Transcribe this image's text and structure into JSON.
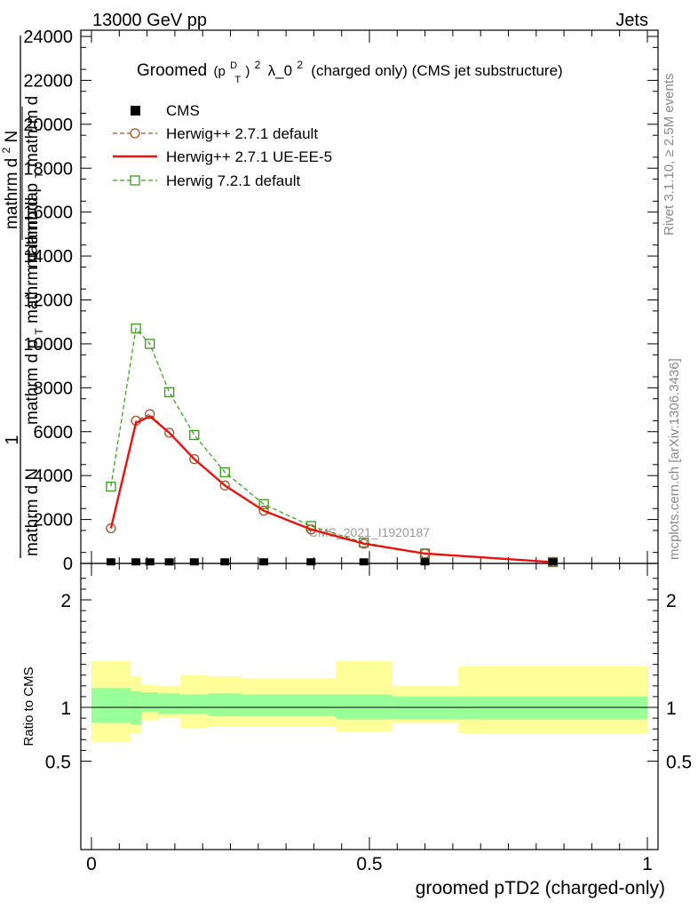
{
  "header": {
    "left": "13000 GeV pp",
    "right": "Jets"
  },
  "side_labels": {
    "rivet": "Rivet 3.1.10, ≥ 2.5M events",
    "mcplots": "mcplots.cern.ch [arXiv:1306.3436]"
  },
  "watermark": "CMS_2021_I1920187",
  "chart_data": [
    {
      "type": "line",
      "title": {
        "prefix": "Groomed",
        "base": "(p",
        "sup_inner": "D",
        "sub_inner": "T",
        "close": ")",
        "sup": "2",
        "lambda": "λ_0",
        "sup2": "2",
        "suffix": " (charged only) (CMS jet substructure)"
      },
      "ylabel": {
        "line1": "1",
        "line2_num": "mathrm d N",
        "frac_num": "mathrm d",
        "frac_num_sup": "2",
        "frac_num_tail": "N",
        "frac_den1": "mathrm d p",
        "frac_den1_sub": "T",
        "frac_den1_tail": " mathrm d lambda",
        "frac_den2": "mathrm d p",
        "frac_den2_sub": "T",
        "frac_den2_tail": " mathrm d"
      },
      "ylim": [
        0,
        24000
      ],
      "xlim": [
        0,
        1
      ],
      "y_ticks": [
        "0",
        "2000",
        "4000",
        "6000",
        "8000",
        "10000",
        "12000",
        "14000",
        "16000",
        "18000",
        "20000",
        "22000",
        "24000"
      ],
      "legend": {
        "placement": "top-left",
        "entries": [
          "CMS",
          "Herwig++ 2.7.1 default",
          "Herwig++ 2.7.1 UE-EE-5",
          "Herwig 7.2.1 default"
        ]
      },
      "series": [
        {
          "name": "CMS",
          "color": "#000000",
          "marker": "square-filled",
          "x": [
            0.035,
            0.08,
            0.105,
            0.14,
            0.185,
            0.24,
            0.31,
            0.395,
            0.49,
            0.6,
            0.83
          ],
          "values": [
            30,
            30,
            30,
            30,
            30,
            30,
            30,
            30,
            30,
            30,
            30
          ]
        },
        {
          "name": "Herwig++ 2.7.1 default",
          "color": "#a0522d",
          "marker": "circle-open",
          "dash": "dashed",
          "x": [
            0.035,
            0.08,
            0.105,
            0.14,
            0.185,
            0.24,
            0.31,
            0.395,
            0.49,
            0.6,
            0.83
          ],
          "values": [
            1600,
            6500,
            6800,
            5950,
            4750,
            3550,
            2400,
            1550,
            900,
            450,
            60
          ]
        },
        {
          "name": "Herwig++ 2.7.1 UE-EE-5",
          "color": "#e8120e",
          "marker": "none",
          "dash": "solid",
          "x": [
            0.035,
            0.08,
            0.105,
            0.14,
            0.185,
            0.24,
            0.31,
            0.395,
            0.49,
            0.6,
            0.83
          ],
          "values": [
            1600,
            6400,
            6700,
            5950,
            4750,
            3550,
            2400,
            1550,
            900,
            450,
            60
          ]
        },
        {
          "name": "Herwig 7.2.1 default",
          "color": "#3a9a1a",
          "marker": "square-open",
          "dash": "dashed",
          "x": [
            0.035,
            0.08,
            0.105,
            0.14,
            0.185,
            0.24,
            0.31,
            0.395,
            0.49,
            0.6,
            0.83
          ],
          "values": [
            3500,
            10700,
            10000,
            7800,
            5850,
            4150,
            2700,
            1700,
            950,
            450,
            60
          ]
        }
      ]
    },
    {
      "type": "area",
      "ylabel": "Ratio to CMS",
      "xlabel": "groomed pTD2 (charged-only)",
      "xlim": [
        0,
        1
      ],
      "ylim": [
        0.4,
        2.3
      ],
      "x_ticks": [
        "0",
        "0.5",
        "1"
      ],
      "y_ticks": [
        "0.5",
        "1",
        "2"
      ],
      "bins": [
        0,
        0.07,
        0.09,
        0.12,
        0.16,
        0.21,
        0.27,
        0.44,
        0.54,
        0.66,
        1.0
      ],
      "band_inner": {
        "color": "#99ff99",
        "lo": [
          0.86,
          0.84,
          0.96,
          0.94,
          0.94,
          0.92,
          0.92,
          0.89,
          0.89,
          0.89
        ],
        "hi": [
          1.18,
          1.15,
          1.14,
          1.13,
          1.12,
          1.13,
          1.12,
          1.12,
          1.1,
          1.1
        ]
      },
      "band_outer": {
        "color": "#ffff99",
        "lo": [
          0.68,
          0.76,
          0.88,
          0.9,
          0.81,
          0.82,
          0.82,
          0.77,
          0.86,
          0.76
        ],
        "hi": [
          1.43,
          1.29,
          1.21,
          1.2,
          1.3,
          1.29,
          1.27,
          1.43,
          1.2,
          1.38
        ]
      },
      "reference_line": 1
    }
  ]
}
